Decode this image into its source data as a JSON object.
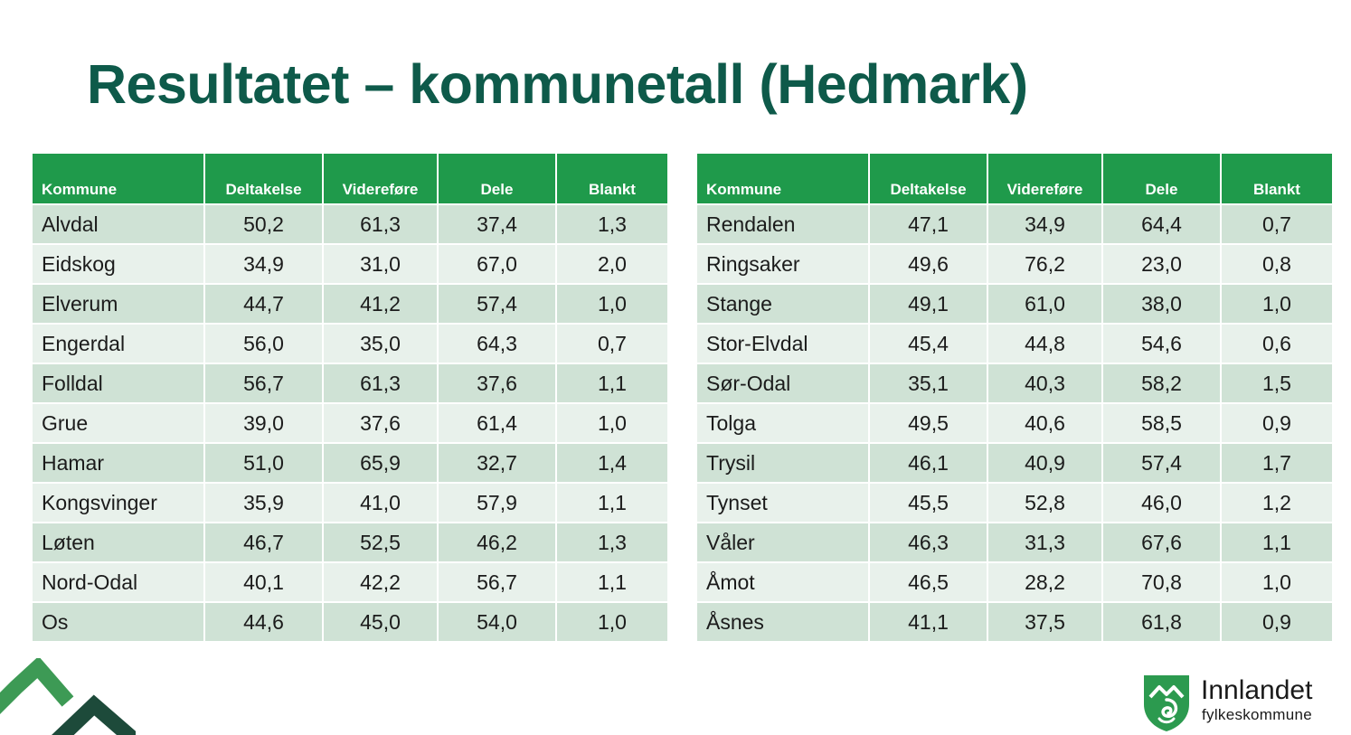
{
  "title": "Resultatet – kommunetall (Hedmark)",
  "colors": {
    "title": "#0e5a4a",
    "header": "#1f9a4b",
    "row_dark": "#cfe2d5",
    "row_light": "#e8f1eb"
  },
  "columns": [
    "Kommune",
    "Deltakelse",
    "Videreføre",
    "Dele",
    "Blankt"
  ],
  "left_table": [
    [
      "Alvdal",
      "50,2",
      "61,3",
      "37,4",
      "1,3"
    ],
    [
      "Eidskog",
      "34,9",
      "31,0",
      "67,0",
      "2,0"
    ],
    [
      "Elverum",
      "44,7",
      "41,2",
      "57,4",
      "1,0"
    ],
    [
      "Engerdal",
      "56,0",
      "35,0",
      "64,3",
      "0,7"
    ],
    [
      "Folldal",
      "56,7",
      "61,3",
      "37,6",
      "1,1"
    ],
    [
      "Grue",
      "39,0",
      "37,6",
      "61,4",
      "1,0"
    ],
    [
      "Hamar",
      "51,0",
      "65,9",
      "32,7",
      "1,4"
    ],
    [
      "Kongsvinger",
      "35,9",
      "41,0",
      "57,9",
      "1,1"
    ],
    [
      "Løten",
      "46,7",
      "52,5",
      "46,2",
      "1,3"
    ],
    [
      "Nord-Odal",
      "40,1",
      "42,2",
      "56,7",
      "1,1"
    ],
    [
      "Os",
      "44,6",
      "45,0",
      "54,0",
      "1,0"
    ]
  ],
  "right_table": [
    [
      "Rendalen",
      "47,1",
      "34,9",
      "64,4",
      "0,7"
    ],
    [
      "Ringsaker",
      "49,6",
      "76,2",
      "23,0",
      "0,8"
    ],
    [
      "Stange",
      "49,1",
      "61,0",
      "38,0",
      "1,0"
    ],
    [
      "Stor-Elvdal",
      "45,4",
      "44,8",
      "54,6",
      "0,6"
    ],
    [
      "Sør-Odal",
      "35,1",
      "40,3",
      "58,2",
      "1,5"
    ],
    [
      "Tolga",
      "49,5",
      "40,6",
      "58,5",
      "0,9"
    ],
    [
      "Trysil",
      "46,1",
      "40,9",
      "57,4",
      "1,7"
    ],
    [
      "Tynset",
      "45,5",
      "52,8",
      "46,0",
      "1,2"
    ],
    [
      "Våler",
      "46,3",
      "31,3",
      "67,6",
      "1,1"
    ],
    [
      "Åmot",
      "46,5",
      "28,2",
      "70,8",
      "1,0"
    ],
    [
      "Åsnes",
      "41,1",
      "37,5",
      "61,8",
      "0,9"
    ]
  ],
  "logo": {
    "name": "Innlandet",
    "subtitle": "fylkeskommune",
    "icon": "innlandet-shield-icon"
  }
}
